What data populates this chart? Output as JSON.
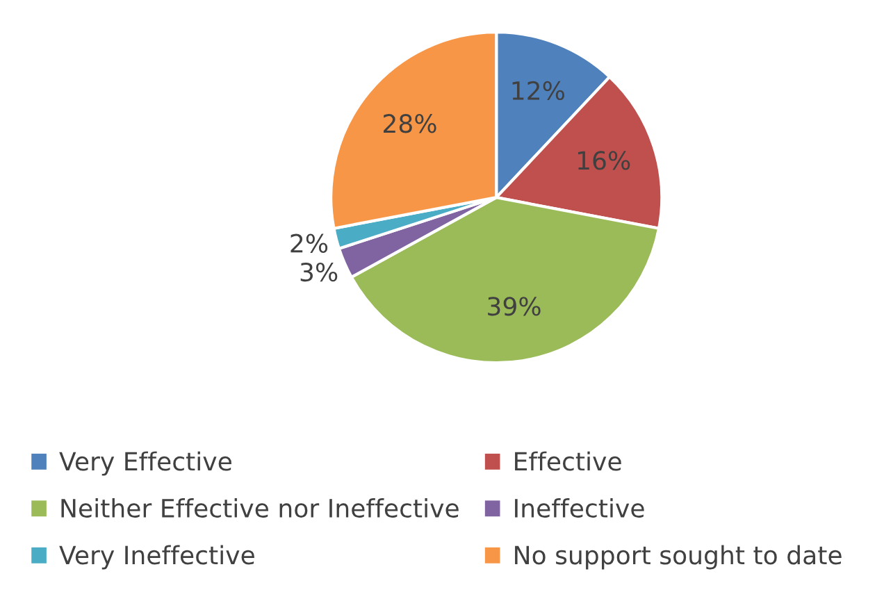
{
  "chart_data": {
    "type": "pie",
    "categories": [
      "Very Effective",
      "Effective",
      "Neither Effective nor Ineffective",
      "Ineffective",
      "Very Ineffective",
      "No support sought to date"
    ],
    "values": [
      12,
      16,
      39,
      3,
      2,
      28
    ],
    "colors": [
      "#4f81bd",
      "#c0504d",
      "#9bbb59",
      "#8064a2",
      "#4bacc6",
      "#f79646"
    ],
    "value_labels": [
      "12%",
      "16%",
      "39%",
      "3%",
      "2%",
      "28%"
    ],
    "legend": "bottom"
  }
}
